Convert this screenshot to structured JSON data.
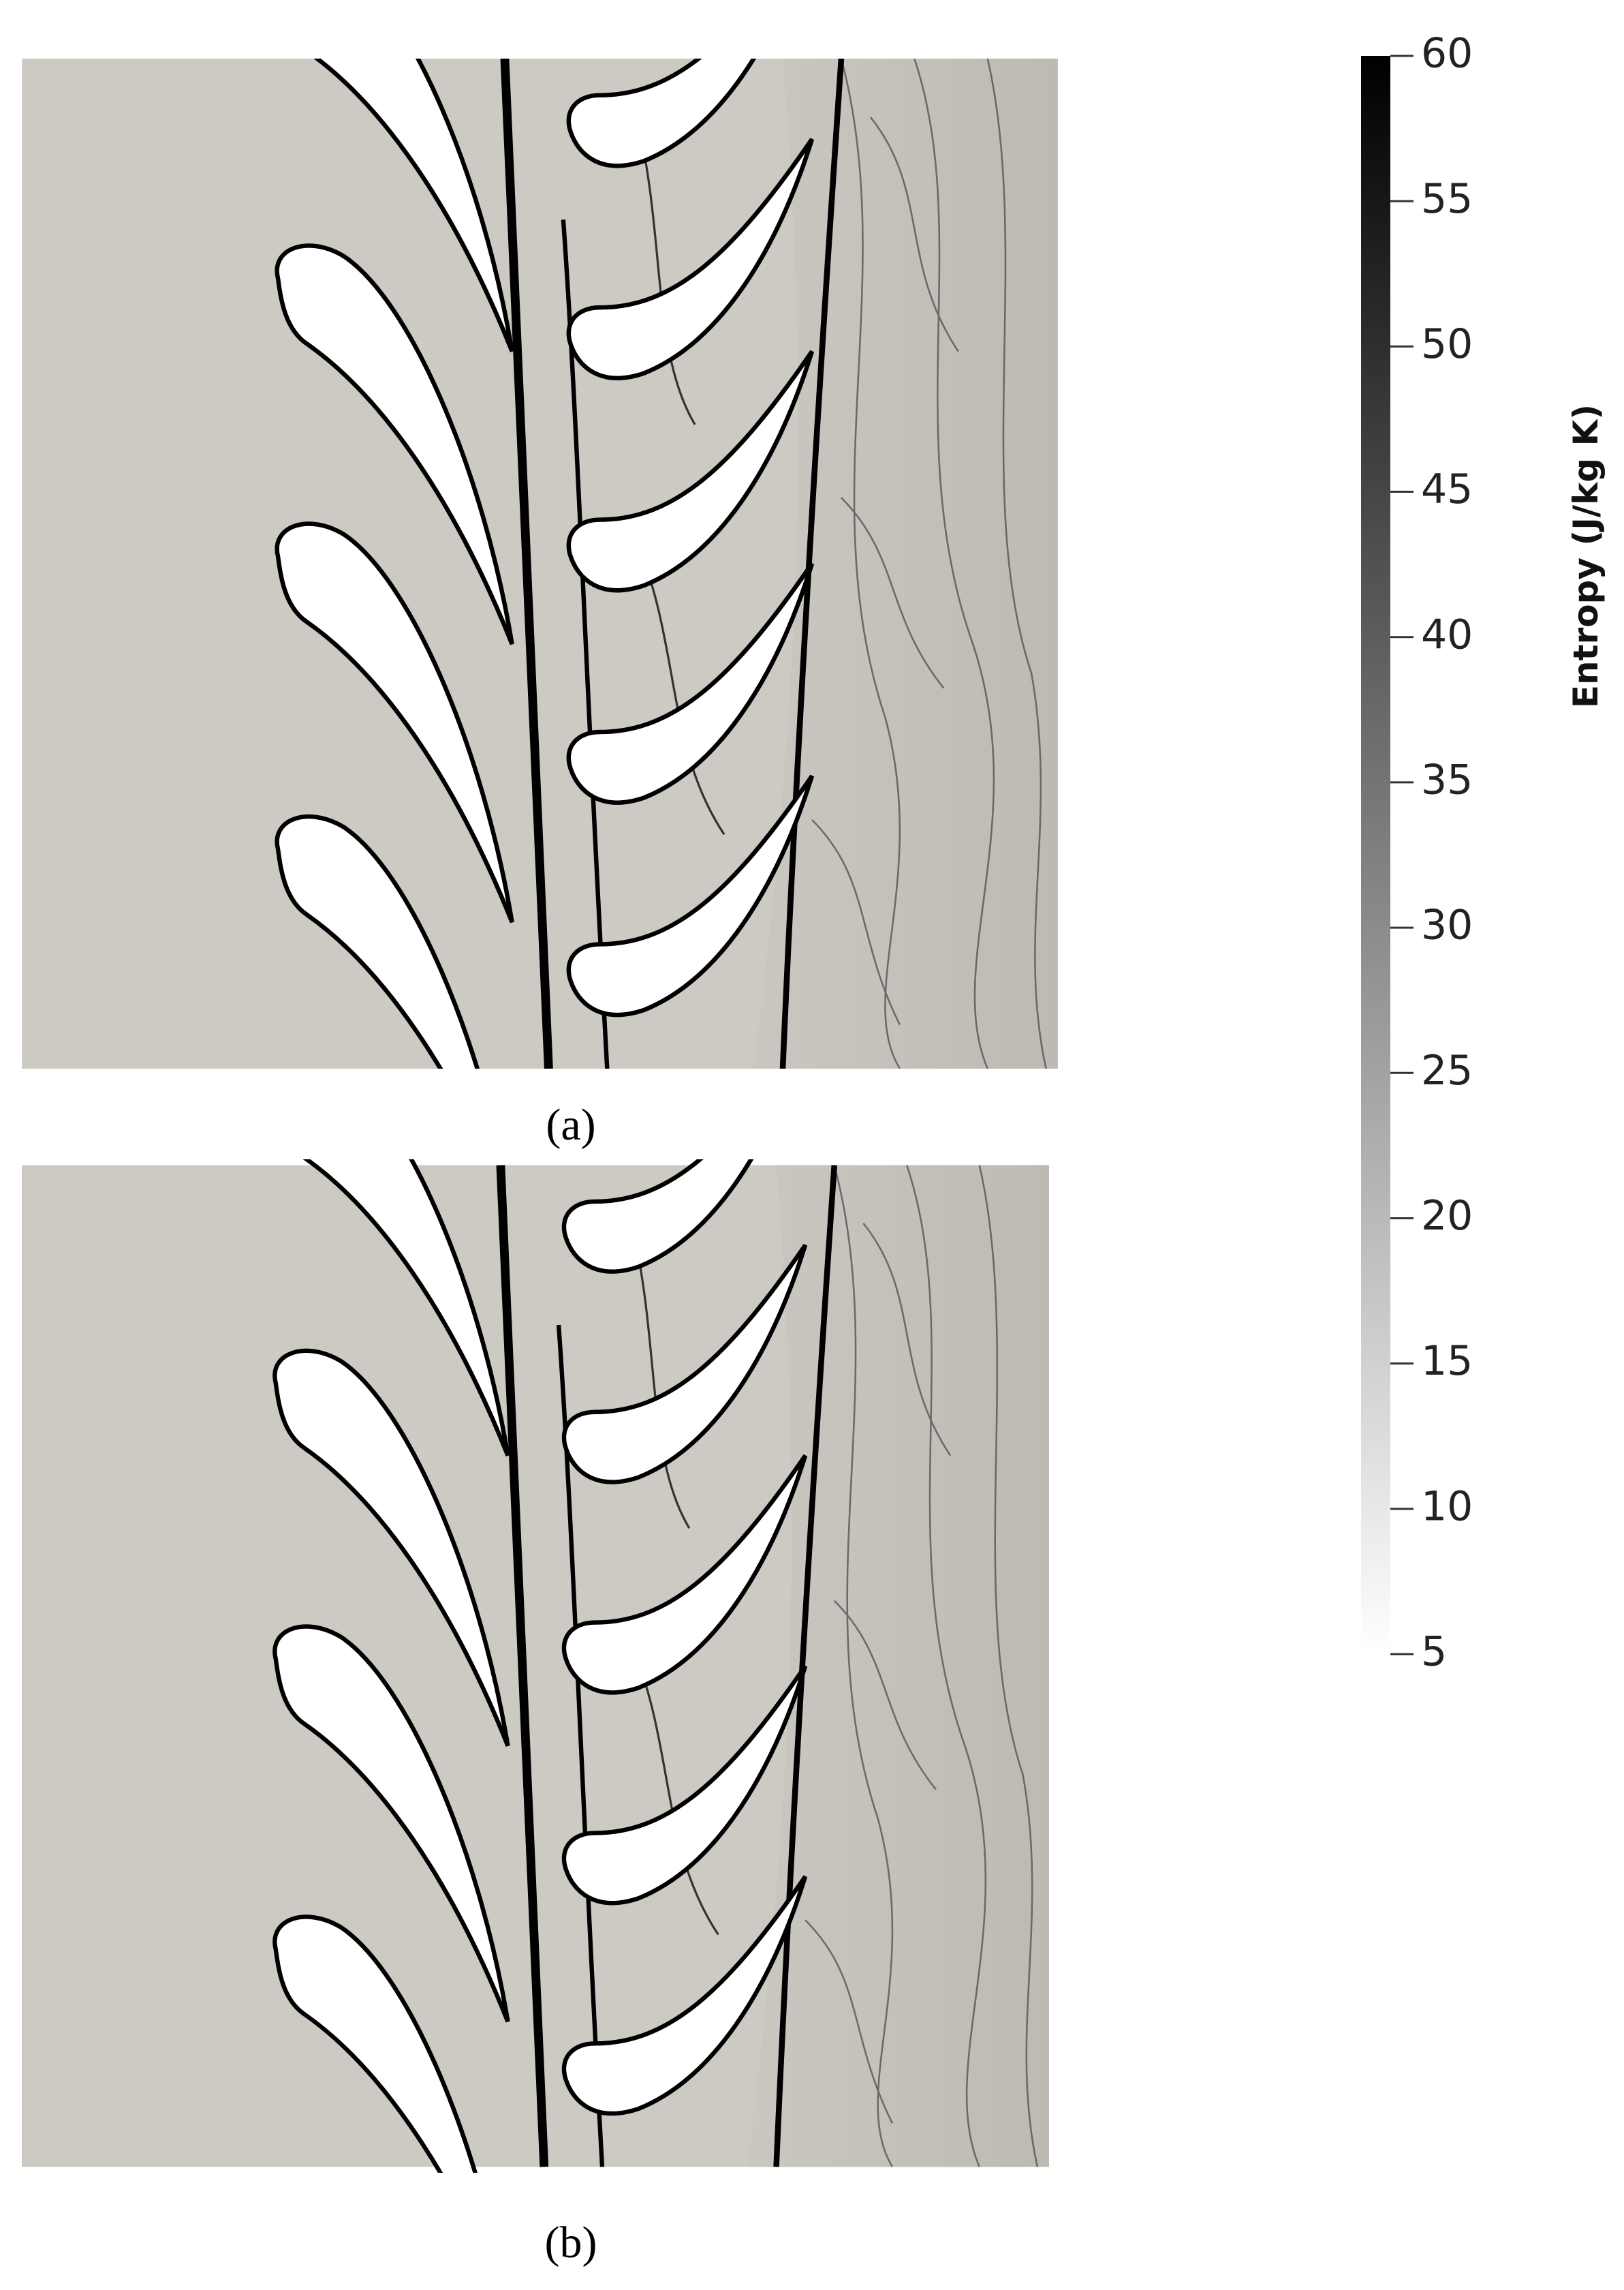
{
  "panels": [
    {
      "label": "(a)"
    },
    {
      "label": "(b)"
    }
  ],
  "colorbar": {
    "title": "Entropy (J/kg K)",
    "lim": [
      5,
      60
    ],
    "ticks": [
      5,
      10,
      15,
      20,
      25,
      30,
      35,
      40,
      45,
      50,
      55,
      60
    ]
  }
}
